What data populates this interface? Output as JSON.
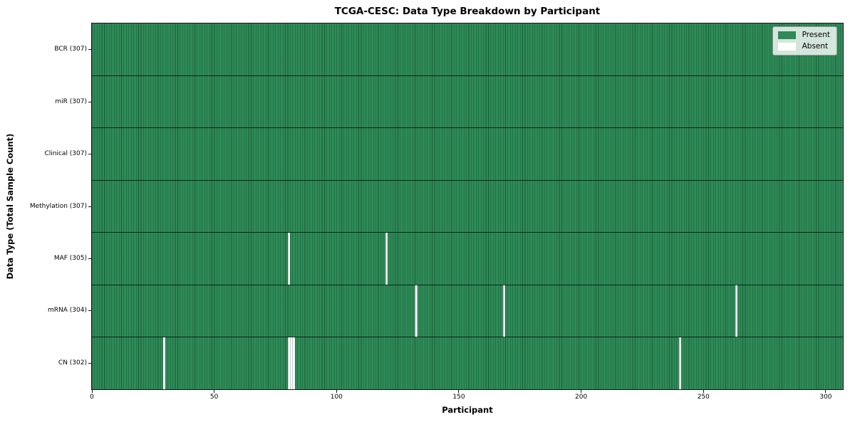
{
  "chart_data": {
    "type": "heatmap",
    "title": "TCGA-CESC: Data Type Breakdown by Participant",
    "xlabel": "Participant",
    "ylabel": "Data Type (Total Sample Count)",
    "n_participants": 307,
    "xlim": [
      0,
      307
    ],
    "x_ticks": [
      0,
      50,
      100,
      150,
      200,
      250,
      300
    ],
    "grid": false,
    "rows": [
      {
        "label": "BCR (307)",
        "data_type": "BCR",
        "present_count": 307,
        "absent_participants": []
      },
      {
        "label": "miR (307)",
        "data_type": "miR",
        "present_count": 307,
        "absent_participants": []
      },
      {
        "label": "Clinical (307)",
        "data_type": "Clinical",
        "present_count": 307,
        "absent_participants": []
      },
      {
        "label": "Methylation (307)",
        "data_type": "Methylation",
        "present_count": 307,
        "absent_participants": []
      },
      {
        "label": "MAF (305)",
        "data_type": "MAF",
        "present_count": 305,
        "absent_participants": [
          80,
          120
        ]
      },
      {
        "label": "mRNA (304)",
        "data_type": "mRNA",
        "present_count": 304,
        "absent_participants": [
          132,
          168,
          263
        ]
      },
      {
        "label": "CN (302)",
        "data_type": "CN",
        "present_count": 302,
        "absent_participants": [
          29,
          80,
          81,
          82,
          240
        ]
      }
    ],
    "legend": {
      "position": "upper right",
      "entries": [
        {
          "label": "Present",
          "color": "#2e8b57"
        },
        {
          "label": "Absent",
          "color": "#ffffff"
        }
      ]
    },
    "colors": {
      "present": "#2e8b57",
      "absent": "#ffffff",
      "cell_edge": "#08281a",
      "row_divider": "#000000",
      "spine": "#161616"
    }
  }
}
